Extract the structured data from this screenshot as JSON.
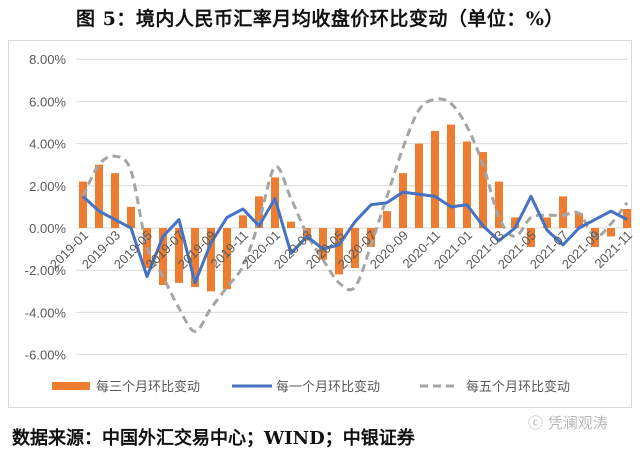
{
  "title": "图 5：境内人民币汇率月均收盘价环比变动（单位：%）",
  "source": "数据来源：中国外汇交易中心；WIND；中银证券",
  "watermark": "凭澜观涛",
  "colors": {
    "bar": "#ED7D31",
    "line1": "#4472C4",
    "line5": "#A5A5A5",
    "grid": "#D9D9D9",
    "axis_text": "#595959"
  },
  "legend": [
    {
      "label": "每三个月环比变动",
      "type": "bar"
    },
    {
      "label": "每一个月环比变动",
      "type": "line"
    },
    {
      "label": "每五个月环比变动",
      "type": "dashed"
    }
  ],
  "chart_data": {
    "type": "bar",
    "title": "图 5：境内人民币汇率月均收盘价环比变动（单位：%）",
    "xlabel": "",
    "ylabel": "",
    "ylim": [
      -6,
      8
    ],
    "yticks": [
      "8.00%",
      "6.00%",
      "4.00%",
      "2.00%",
      "0.00%",
      "-2.00%",
      "-4.00%",
      "-6.00%"
    ],
    "grid": true,
    "legend_position": "bottom",
    "x_tick_labels": [
      "2019-01",
      "2019-03",
      "2019-05",
      "2019-07",
      "2019-09",
      "2019-11",
      "2020-01",
      "2020-03",
      "2020-05",
      "2020-07",
      "2020-09",
      "2020-11",
      "2021-01",
      "2021-03",
      "2021-05",
      "2021-07",
      "2021-09",
      "2021-11"
    ],
    "categories": [
      "2019-01",
      "2019-02",
      "2019-03",
      "2019-04",
      "2019-05",
      "2019-06",
      "2019-07",
      "2019-08",
      "2019-09",
      "2019-10",
      "2019-11",
      "2019-12",
      "2020-01",
      "2020-02",
      "2020-03",
      "2020-04",
      "2020-05",
      "2020-06",
      "2020-07",
      "2020-08",
      "2020-09",
      "2020-10",
      "2020-11",
      "2020-12",
      "2021-01",
      "2021-02",
      "2021-03",
      "2021-04",
      "2021-05",
      "2021-06",
      "2021-07",
      "2021-08",
      "2021-09",
      "2021-10",
      "2021-11"
    ],
    "series": [
      {
        "name": "每三个月环比变动",
        "type": "bar",
        "values": [
          2.2,
          3.0,
          2.6,
          1.0,
          -1.9,
          -2.7,
          -2.6,
          -2.8,
          -3.0,
          -2.9,
          0.6,
          1.5,
          2.4,
          0.3,
          -0.6,
          -1.5,
          -2.2,
          -1.9,
          -0.9,
          0.8,
          2.6,
          4.0,
          4.6,
          4.9,
          4.1,
          3.6,
          2.2,
          0.5,
          -0.9,
          0.5,
          1.5,
          0.7,
          -0.9,
          -0.4,
          0.9
        ]
      },
      {
        "name": "每一个月环比变动",
        "type": "line",
        "values": [
          1.5,
          0.8,
          0.4,
          0.0,
          -2.3,
          -0.4,
          0.4,
          -2.6,
          -0.7,
          0.5,
          0.9,
          0.1,
          1.4,
          -1.2,
          -0.4,
          -1.0,
          -0.8,
          0.3,
          1.1,
          1.2,
          1.7,
          1.6,
          1.5,
          1.0,
          1.1,
          0.1,
          -0.6,
          0.0,
          1.5,
          -0.1,
          -0.8,
          0.0,
          0.4,
          0.8,
          0.4
        ]
      },
      {
        "name": "每五个月环比变动",
        "type": "line_dashed",
        "values": [
          1.5,
          3.0,
          3.4,
          2.7,
          -0.9,
          -2.3,
          -3.8,
          -4.9,
          -3.8,
          -2.8,
          -1.8,
          0.3,
          2.9,
          1.4,
          -0.3,
          -1.5,
          -2.6,
          -2.8,
          -0.8,
          1.5,
          3.8,
          5.6,
          6.1,
          5.9,
          4.8,
          3.0,
          0.5,
          -0.4,
          0.5,
          0.6,
          0.6,
          0.7,
          -0.4,
          0.2,
          1.2
        ]
      }
    ]
  }
}
